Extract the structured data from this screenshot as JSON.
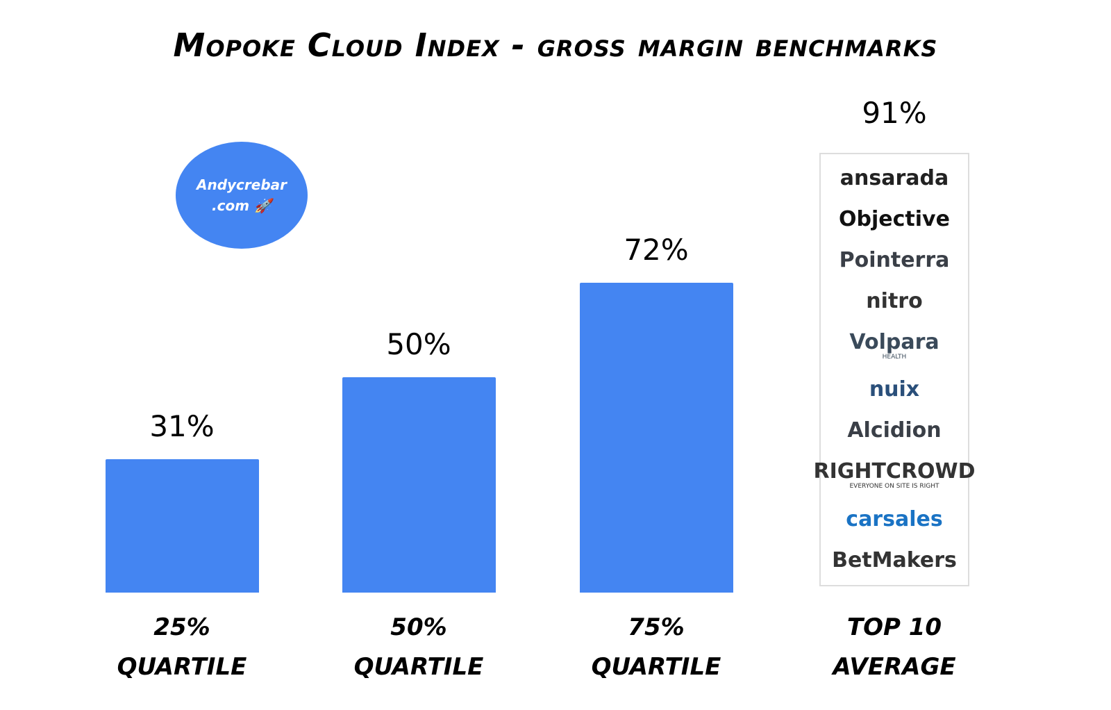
{
  "chart_data": {
    "type": "bar",
    "title": "Mopoke Cloud Index - gross margin benchmarks",
    "categories": [
      "25%\nquartile",
      "50%\nquartile",
      "75%\nquartile",
      "Top 10\nAverage"
    ],
    "values": [
      31,
      50,
      72,
      91
    ],
    "value_labels": [
      "31%",
      "50%",
      "72%",
      "91%"
    ],
    "color": "#4485f2",
    "badge": "Andycrebar\n.com 🚀",
    "logos": [
      {
        "name": "ansarada",
        "color": "#222222"
      },
      {
        "name": "Objective",
        "color": "#111111"
      },
      {
        "name": "Pointerra",
        "color": "#3a3f47"
      },
      {
        "name": "nitro",
        "color": "#333333"
      },
      {
        "name": "Volpara",
        "sub": "HEALTH",
        "color": "#3a4a5a"
      },
      {
        "name": "nuix",
        "color": "#2a4f7a"
      },
      {
        "name": "Alcidion",
        "color": "#3a3f47"
      },
      {
        "name": "RIGHTCROWD",
        "sub": "EVERYONE ON SITE IS RIGHT",
        "color": "#333333"
      },
      {
        "name": "carsales",
        "color": "#1a73c4"
      },
      {
        "name": "BetMakers",
        "color": "#333333"
      }
    ]
  }
}
